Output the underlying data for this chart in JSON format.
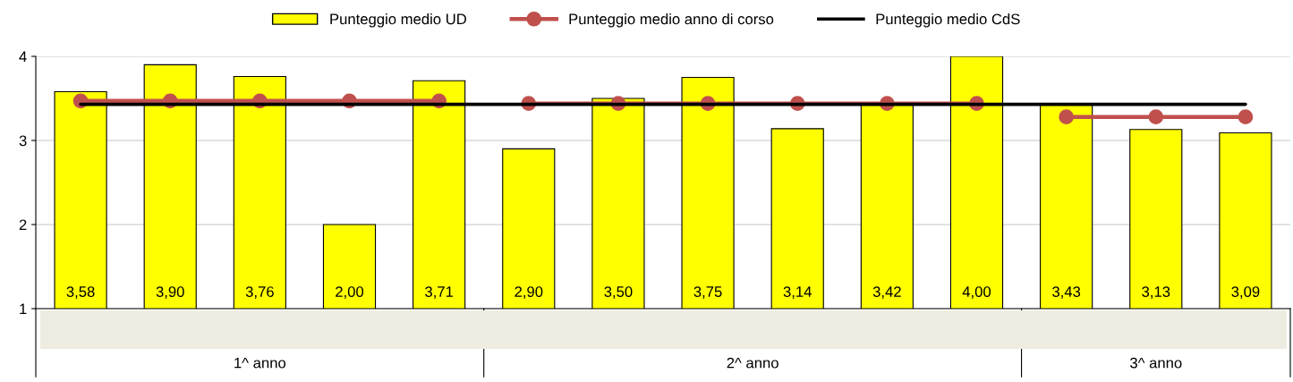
{
  "chart_data": {
    "type": "bar",
    "categories": [
      null,
      null,
      null,
      null,
      null,
      null,
      null,
      null,
      null,
      null,
      null,
      null,
      null,
      null
    ],
    "series": [
      {
        "name": "Punteggio medio UD",
        "color": "#ffff00",
        "values": [
          3.58,
          3.9,
          3.76,
          2.0,
          3.71,
          2.9,
          3.5,
          3.75,
          3.14,
          3.42,
          4.0,
          3.43,
          3.13,
          3.09
        ],
        "value_labels": [
          "3,58",
          "3,90",
          "3,76",
          "2,00",
          "3,71",
          "2,90",
          "3,50",
          "3,75",
          "3,14",
          "3,42",
          "4,00",
          "3,43",
          "3,13",
          "3,09"
        ]
      },
      {
        "name": "Punteggio medio anno di corso",
        "type": "line",
        "color": "#c0504d",
        "marker": "circle",
        "line_style": "solid",
        "values": [
          3.47,
          3.47,
          3.47,
          3.47,
          3.47,
          3.44,
          3.44,
          3.44,
          3.44,
          3.44,
          3.44,
          3.28,
          3.28,
          3.28
        ]
      },
      {
        "name": "Punteggio medio CdS",
        "type": "line",
        "color": "#000000",
        "marker": "none",
        "line_style": "solid",
        "values": [
          3.43,
          3.43,
          3.43,
          3.43,
          3.43,
          3.43,
          3.43,
          3.43,
          3.43,
          3.43,
          3.43,
          3.43,
          3.43,
          3.43
        ]
      }
    ],
    "annotations": [
      "1^ anno",
      "2^ anno",
      "3^ anno"
    ],
    "ylim": [
      1,
      4
    ],
    "yticks": [
      1,
      2,
      3,
      4
    ],
    "grid": "y",
    "legend": "top"
  }
}
